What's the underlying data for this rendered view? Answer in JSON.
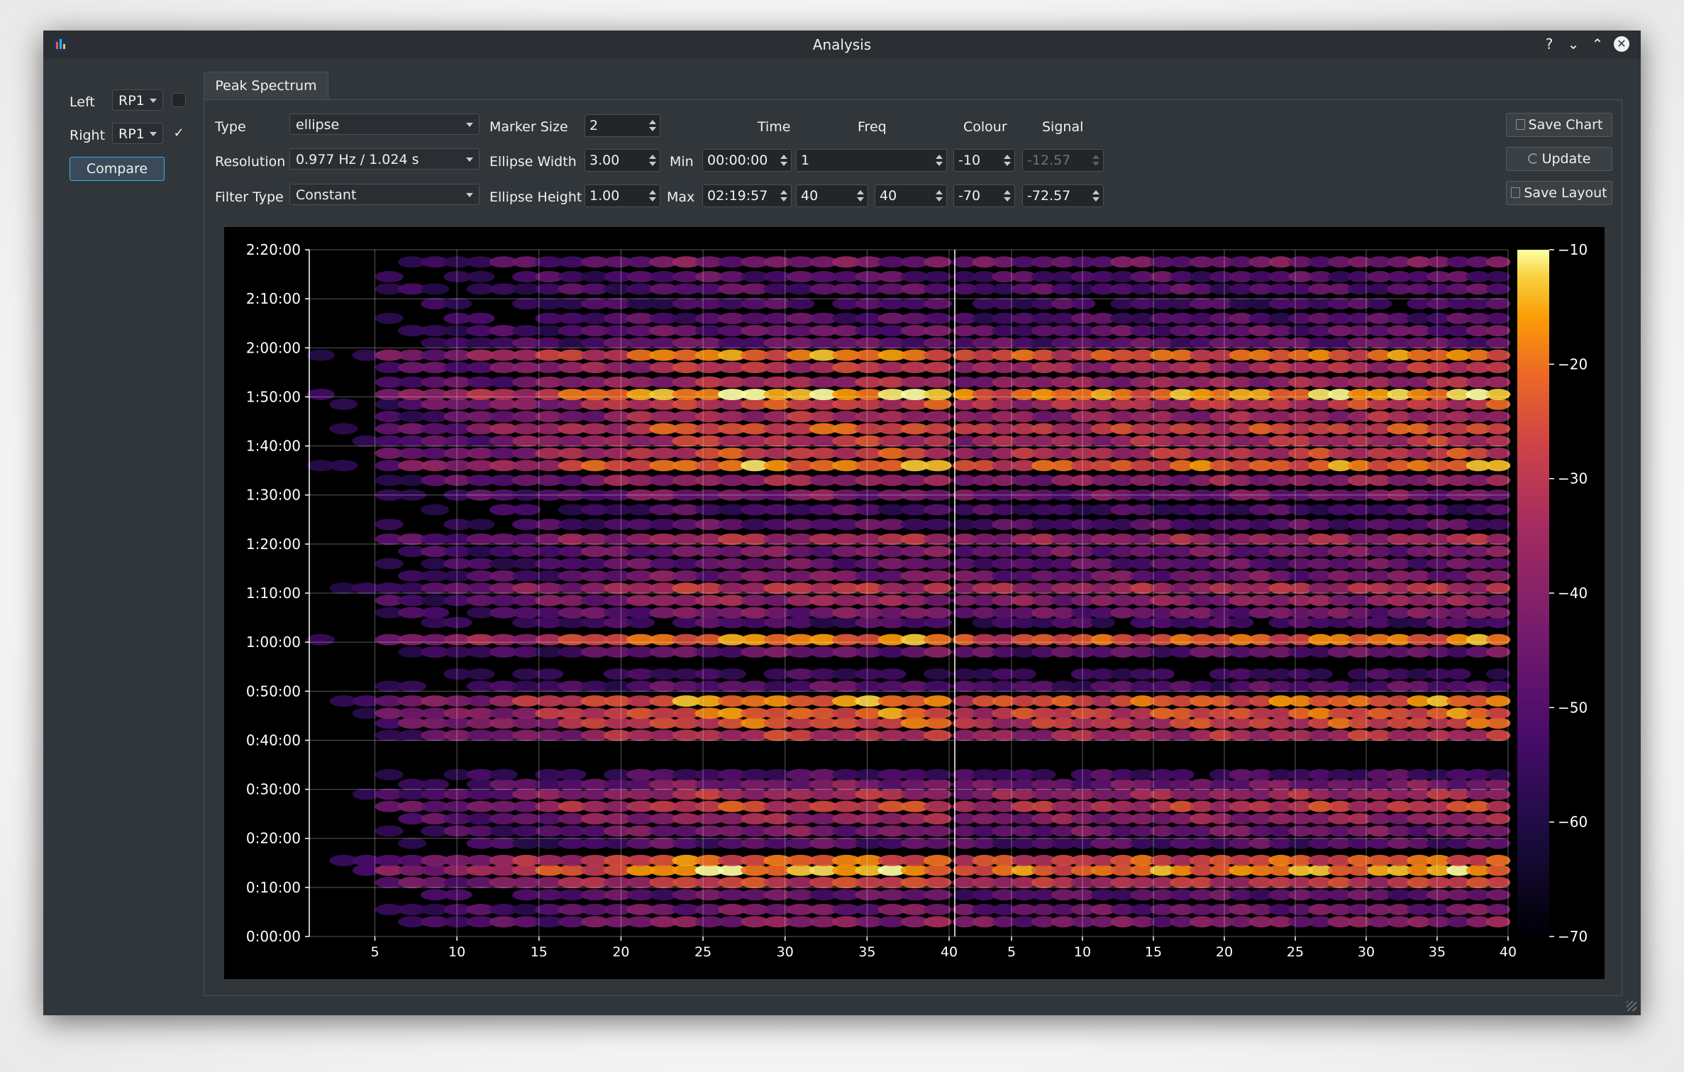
{
  "window": {
    "title": "Analysis"
  },
  "titlebar": {
    "help": "?",
    "minimize": "⌄",
    "maximize": "⌃",
    "close": "✕"
  },
  "sidebar": {
    "left_label": "Left",
    "left_value": "RP1",
    "left_checked": false,
    "right_label": "Right",
    "right_value": "RP1",
    "right_checked": true,
    "check_mark": "✓",
    "compare_label": "Compare"
  },
  "tab": {
    "label": "Peak Spectrum"
  },
  "controls": {
    "type_label": "Type",
    "type_value": "ellipse",
    "resolution_label": "Resolution",
    "resolution_value": "0.977 Hz / 1.024 s",
    "filter_type_label": "Filter Type",
    "filter_type_value": "Constant",
    "marker_size_label": "Marker Size",
    "marker_size_value": "2",
    "ellipse_width_label": "Ellipse Width",
    "ellipse_width_value": "3.00",
    "ellipse_height_label": "Ellipse Height",
    "ellipse_height_value": "1.00",
    "min_label": "Min",
    "max_label": "Max",
    "headers": {
      "time": "Time",
      "freq": "Freq",
      "colour": "Colour",
      "signal": "Signal"
    },
    "min": {
      "time": "00:00:00",
      "freq": "1",
      "colour": "-10",
      "signal": "-12.57"
    },
    "max": {
      "time": "02:19:57",
      "freq_a": "40",
      "freq_b": "40",
      "colour": "-70",
      "signal": "-72.57"
    },
    "save_chart_label": "Save Chart",
    "update_label": "Update",
    "save_layout_label": "Save Layout"
  },
  "chart_data": {
    "type": "heatmap",
    "panels": [
      {
        "x_range": [
          1,
          40
        ],
        "x_ticks": [
          5,
          10,
          15,
          20,
          25,
          30,
          35,
          40
        ]
      },
      {
        "x_range": [
          1,
          40
        ],
        "x_ticks": [
          5,
          10,
          15,
          20,
          25,
          30,
          35,
          40
        ]
      }
    ],
    "y_ticks": [
      "0:00:00",
      "0:10:00",
      "0:20:00",
      "0:30:00",
      "0:40:00",
      "0:50:00",
      "1:00:00",
      "1:10:00",
      "1:20:00",
      "1:30:00",
      "1:40:00",
      "1:50:00",
      "2:00:00",
      "2:10:00",
      "2:20:00"
    ],
    "y_range_minutes": [
      0,
      140
    ],
    "colorbar": {
      "range": [
        -70,
        -10
      ],
      "ticks": [
        -10,
        -20,
        -30,
        -40,
        -50,
        -60,
        -70
      ],
      "colormap": "inferno"
    },
    "grid": true,
    "band_intensity_by_minute": [
      {
        "t": 3,
        "v": 0.5
      },
      {
        "t": 5.5,
        "v": 0.45
      },
      {
        "t": 8.5,
        "v": 0.4
      },
      {
        "t": 11,
        "v": 0.7
      },
      {
        "t": 13.5,
        "v": 0.92
      },
      {
        "t": 15.5,
        "v": 0.8
      },
      {
        "t": 19,
        "v": 0.35
      },
      {
        "t": 21.5,
        "v": 0.45
      },
      {
        "t": 24,
        "v": 0.55
      },
      {
        "t": 26.5,
        "v": 0.7
      },
      {
        "t": 29,
        "v": 0.6
      },
      {
        "t": 31,
        "v": 0.45
      },
      {
        "t": 33,
        "v": 0.3
      },
      {
        "t": 41,
        "v": 0.65
      },
      {
        "t": 43.5,
        "v": 0.75
      },
      {
        "t": 45.5,
        "v": 0.8
      },
      {
        "t": 48,
        "v": 0.85
      },
      {
        "t": 51,
        "v": 0.35
      },
      {
        "t": 53.5,
        "v": 0.25
      },
      {
        "t": 58,
        "v": 0.4
      },
      {
        "t": 60.5,
        "v": 0.85
      },
      {
        "t": 64,
        "v": 0.3
      },
      {
        "t": 66,
        "v": 0.45
      },
      {
        "t": 68.5,
        "v": 0.55
      },
      {
        "t": 71,
        "v": 0.65
      },
      {
        "t": 73.5,
        "v": 0.45
      },
      {
        "t": 76,
        "v": 0.4
      },
      {
        "t": 78.5,
        "v": 0.45
      },
      {
        "t": 81,
        "v": 0.6
      },
      {
        "t": 84,
        "v": 0.35
      },
      {
        "t": 87,
        "v": 0.3
      },
      {
        "t": 90,
        "v": 0.45
      },
      {
        "t": 93,
        "v": 0.55
      },
      {
        "t": 96,
        "v": 0.85
      },
      {
        "t": 98.5,
        "v": 0.7
      },
      {
        "t": 101,
        "v": 0.65
      },
      {
        "t": 103.5,
        "v": 0.75
      },
      {
        "t": 106,
        "v": 0.6
      },
      {
        "t": 108.5,
        "v": 0.7
      },
      {
        "t": 110.5,
        "v": 0.95
      },
      {
        "t": 113,
        "v": 0.6
      },
      {
        "t": 116,
        "v": 0.65
      },
      {
        "t": 118.5,
        "v": 0.85
      },
      {
        "t": 121,
        "v": 0.4
      },
      {
        "t": 123.5,
        "v": 0.4
      },
      {
        "t": 126,
        "v": 0.35
      },
      {
        "t": 129,
        "v": 0.3
      },
      {
        "t": 132,
        "v": 0.35
      },
      {
        "t": 134.5,
        "v": 0.35
      },
      {
        "t": 137.5,
        "v": 0.45
      }
    ]
  }
}
